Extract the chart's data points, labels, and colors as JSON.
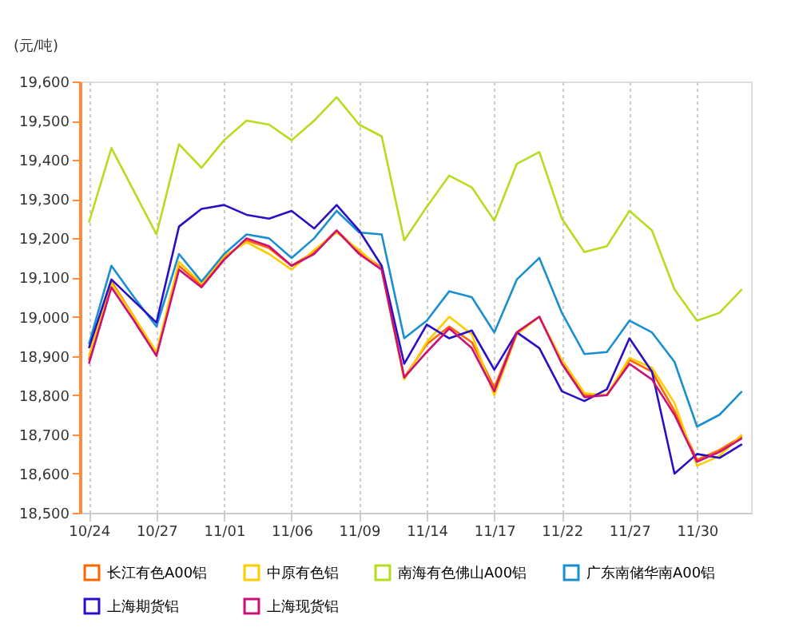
{
  "chart_data": {
    "type": "line",
    "ylabel": "(元/吨)",
    "categories": [
      "10/24",
      null,
      null,
      "10/27",
      null,
      null,
      "11/01",
      null,
      null,
      "11/06",
      null,
      null,
      "11/09",
      null,
      null,
      "11/14",
      null,
      null,
      "11/17",
      null,
      null,
      "11/22",
      null,
      null,
      "11/27",
      null,
      null,
      "11/30",
      null,
      null
    ],
    "ylim": [
      18500,
      19600
    ],
    "yticks": [
      {
        "value": 18500,
        "label": "18,500"
      },
      {
        "value": 18600,
        "label": "18,600"
      },
      {
        "value": 18700,
        "label": "18,700"
      },
      {
        "value": 18800,
        "label": "18,800"
      },
      {
        "value": 18900,
        "label": "18,900"
      },
      {
        "value": 19000,
        "label": "19,000"
      },
      {
        "value": 19100,
        "label": "19,100"
      },
      {
        "value": 19200,
        "label": "19,200"
      },
      {
        "value": 19300,
        "label": "19,300"
      },
      {
        "value": 19400,
        "label": "19,400"
      },
      {
        "value": 19500,
        "label": "19,500"
      },
      {
        "value": 19600,
        "label": "19,600"
      }
    ],
    "grid": "x",
    "legend": "bottom",
    "marker": "none",
    "line_style": "solid",
    "series": [
      {
        "name": "长江有色A00铝",
        "color": "#ff6600",
        "values": [
          18890,
          19090,
          19000,
          18905,
          19130,
          19080,
          19150,
          19195,
          19175,
          19130,
          19165,
          19220,
          19165,
          19125,
          18845,
          18930,
          18975,
          18935,
          18820,
          18960,
          19000,
          18885,
          18800,
          18800,
          18890,
          18860,
          18760,
          18635,
          18660,
          18695
        ]
      },
      {
        "name": "中原有色铝",
        "color": "#ffcc00",
        "values": [
          18900,
          19085,
          19000,
          18910,
          19140,
          19085,
          19155,
          19190,
          19160,
          19120,
          19170,
          19215,
          19170,
          19120,
          18840,
          18935,
          19000,
          18955,
          18800,
          18955,
          19000,
          18890,
          18805,
          18800,
          18895,
          18870,
          18780,
          18620,
          18645,
          18700
        ]
      },
      {
        "name": "南海有色佛山A00铝",
        "color": "#b5dd1e",
        "values": [
          19240,
          19430,
          19320,
          19210,
          19440,
          19380,
          19450,
          19500,
          19490,
          19450,
          19500,
          19560,
          19490,
          19460,
          19195,
          19280,
          19360,
          19330,
          19245,
          19390,
          19420,
          19250,
          19165,
          19180,
          19270,
          19220,
          19070,
          18990,
          19010,
          19070
        ]
      },
      {
        "name": "广东南储华南A00铝",
        "color": "#1a8fd0",
        "values": [
          18930,
          19130,
          19050,
          18975,
          19160,
          19090,
          19160,
          19210,
          19200,
          19150,
          19200,
          19270,
          19215,
          19210,
          18945,
          18990,
          19065,
          19050,
          18960,
          19095,
          19150,
          19010,
          18905,
          18910,
          18990,
          18960,
          18885,
          18720,
          18750,
          18810
        ]
      },
      {
        "name": "上海期货铝",
        "color": "#2a10c4",
        "values": [
          18920,
          19095,
          19040,
          18985,
          19230,
          19275,
          19285,
          19260,
          19250,
          19270,
          19225,
          19285,
          19220,
          19130,
          18880,
          18980,
          18945,
          18965,
          18865,
          18960,
          18920,
          18810,
          18785,
          18815,
          18945,
          18860,
          18600,
          18650,
          18640,
          18675
        ]
      },
      {
        "name": "上海现货铝",
        "color": "#cc1077",
        "values": [
          18880,
          19075,
          18990,
          18900,
          19120,
          19075,
          19145,
          19200,
          19180,
          19130,
          19160,
          19220,
          19160,
          19120,
          18845,
          18910,
          18970,
          18920,
          18810,
          18960,
          19000,
          18880,
          18795,
          18800,
          18880,
          18840,
          18750,
          18630,
          18655,
          18690
        ]
      }
    ]
  }
}
